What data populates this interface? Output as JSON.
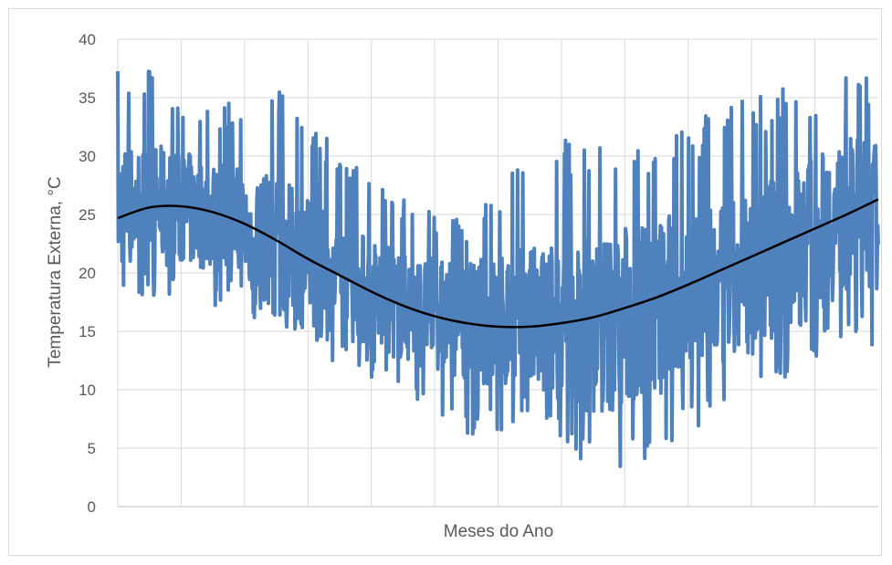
{
  "chart_data": {
    "type": "line",
    "title": "",
    "xlabel": "Meses do Ano",
    "ylabel": "Temperatura Externa, °C",
    "ylim": [
      0,
      40
    ],
    "yticks": [
      0,
      5,
      10,
      15,
      20,
      25,
      30,
      35,
      40
    ],
    "x_categories": 12,
    "grid": true,
    "legend": "none",
    "colors": {
      "series": "#4f81bd",
      "trend": "#000000",
      "grid": "#d9d9d9",
      "text": "#595959"
    },
    "series": [
      {
        "role": "hourly-temperature",
        "envelope_months": [
          1,
          2,
          3,
          4,
          5,
          6,
          7,
          8,
          9,
          10,
          11,
          12
        ],
        "max": [
          37.5,
          34.5,
          36.3,
          30.5,
          26.5,
          24.3,
          31.2,
          32.3,
          32.0,
          34.5,
          36.0,
          37.3
        ],
        "min": [
          18.0,
          17.2,
          15.2,
          12.0,
          9.7,
          6.0,
          6.5,
          3.3,
          2.8,
          9.0,
          10.3,
          13.5
        ],
        "mean": [
          25.8,
          25.0,
          22.5,
          19.5,
          17.0,
          16.0,
          15.5,
          15.5,
          16.8,
          18.5,
          21.5,
          25.0
        ]
      },
      {
        "role": "trend",
        "x": [
          0,
          0.5,
          1,
          1.5,
          2,
          2.5,
          3,
          3.5,
          4,
          4.5,
          5,
          5.5,
          6,
          6.5,
          7,
          7.5,
          8,
          8.5,
          9,
          9.5,
          10,
          10.5,
          11,
          11.5,
          12
        ],
        "y": [
          24.7,
          25.6,
          25.7,
          25.2,
          24.2,
          22.8,
          21.2,
          19.8,
          18.4,
          17.2,
          16.3,
          15.7,
          15.4,
          15.4,
          15.7,
          16.2,
          17.0,
          17.9,
          19.0,
          20.2,
          21.4,
          22.6,
          23.8,
          25.0,
          26.3
        ]
      }
    ]
  }
}
